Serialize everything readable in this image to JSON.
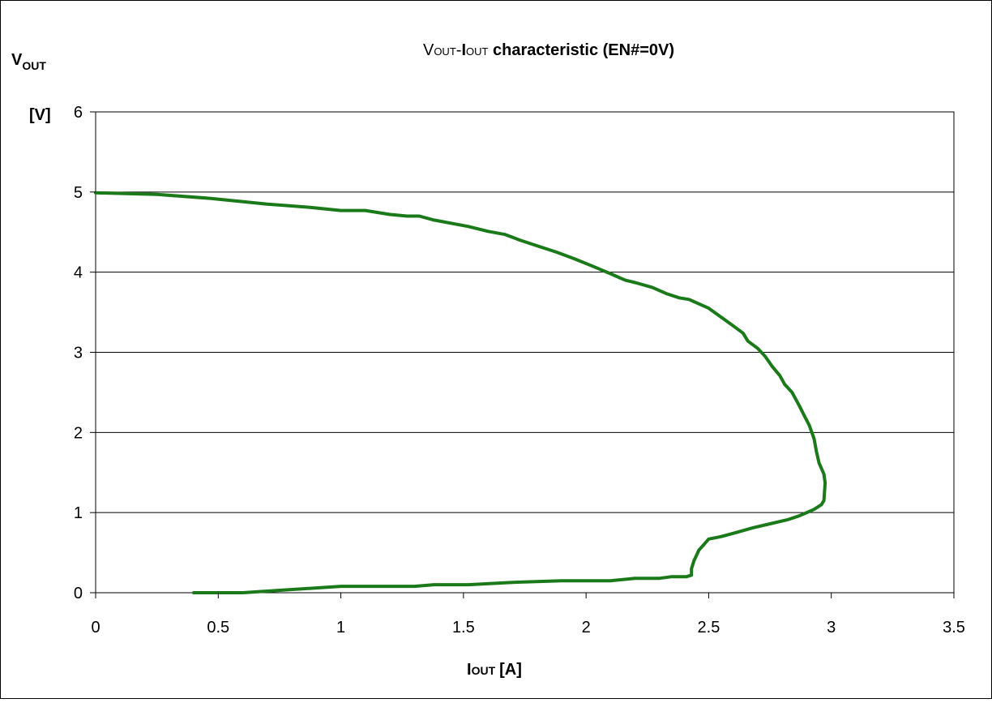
{
  "chart_data": {
    "type": "line",
    "title": {
      "v": "V",
      "v_sub": "OUT",
      "dash": "-",
      "i": "I",
      "i_sub": "OUT",
      "rest": " characteristic (EN#=0V)"
    },
    "ylabel": {
      "main": "V",
      "sub": "OUT",
      "unit": "[V]"
    },
    "xlabel": {
      "main": "I",
      "sub": "OUT",
      "unit": "[A]"
    },
    "xlim": [
      0,
      3.5
    ],
    "ylim": [
      0,
      6
    ],
    "x_ticks": [
      "0",
      "0.5",
      "1",
      "1.5",
      "2",
      "2.5",
      "3",
      "3.5"
    ],
    "y_ticks": [
      "0",
      "1",
      "2",
      "3",
      "4",
      "5",
      "6"
    ],
    "grid": "horizontal",
    "legend": "none",
    "line_color": "#1a7a1a",
    "frame_color": "#000000",
    "grid_color": "#000000",
    "series": [
      {
        "points": [
          [
            0.0,
            4.99
          ],
          [
            0.25,
            4.97
          ],
          [
            0.47,
            4.92
          ],
          [
            0.7,
            4.85
          ],
          [
            0.87,
            4.81
          ],
          [
            1.0,
            4.77
          ],
          [
            1.1,
            4.77
          ],
          [
            1.2,
            4.72
          ],
          [
            1.27,
            4.7
          ],
          [
            1.32,
            4.7
          ],
          [
            1.38,
            4.65
          ],
          [
            1.52,
            4.57
          ],
          [
            1.6,
            4.51
          ],
          [
            1.67,
            4.47
          ],
          [
            1.73,
            4.4
          ],
          [
            1.8,
            4.33
          ],
          [
            1.88,
            4.25
          ],
          [
            1.95,
            4.17
          ],
          [
            2.03,
            4.07
          ],
          [
            2.1,
            3.98
          ],
          [
            2.16,
            3.9
          ],
          [
            2.2,
            3.87
          ],
          [
            2.27,
            3.81
          ],
          [
            2.33,
            3.73
          ],
          [
            2.38,
            3.68
          ],
          [
            2.42,
            3.66
          ],
          [
            2.5,
            3.55
          ],
          [
            2.55,
            3.44
          ],
          [
            2.6,
            3.33
          ],
          [
            2.64,
            3.24
          ],
          [
            2.66,
            3.14
          ],
          [
            2.7,
            3.05
          ],
          [
            2.73,
            2.95
          ],
          [
            2.76,
            2.82
          ],
          [
            2.79,
            2.71
          ],
          [
            2.81,
            2.6
          ],
          [
            2.84,
            2.5
          ],
          [
            2.87,
            2.33
          ],
          [
            2.89,
            2.21
          ],
          [
            2.91,
            2.09
          ],
          [
            2.93,
            1.92
          ],
          [
            2.94,
            1.75
          ],
          [
            2.95,
            1.62
          ],
          [
            2.97,
            1.48
          ],
          [
            2.975,
            1.37
          ],
          [
            2.97,
            1.15
          ],
          [
            2.96,
            1.1
          ],
          [
            2.93,
            1.04
          ],
          [
            2.87,
            0.96
          ],
          [
            2.82,
            0.91
          ],
          [
            2.75,
            0.86
          ],
          [
            2.68,
            0.81
          ],
          [
            2.61,
            0.75
          ],
          [
            2.55,
            0.7
          ],
          [
            2.5,
            0.67
          ],
          [
            2.48,
            0.6
          ],
          [
            2.46,
            0.53
          ],
          [
            2.44,
            0.4
          ],
          [
            2.43,
            0.3
          ],
          [
            2.43,
            0.22
          ],
          [
            2.41,
            0.2
          ],
          [
            2.35,
            0.2
          ],
          [
            2.3,
            0.18
          ],
          [
            2.2,
            0.18
          ],
          [
            2.1,
            0.15
          ],
          [
            1.9,
            0.15
          ],
          [
            1.7,
            0.13
          ],
          [
            1.52,
            0.1
          ],
          [
            1.38,
            0.1
          ],
          [
            1.3,
            0.08
          ],
          [
            1.2,
            0.08
          ],
          [
            1.0,
            0.08
          ],
          [
            0.9,
            0.06
          ],
          [
            0.75,
            0.03
          ],
          [
            0.6,
            0.0
          ],
          [
            0.4,
            0.0
          ]
        ]
      }
    ]
  }
}
